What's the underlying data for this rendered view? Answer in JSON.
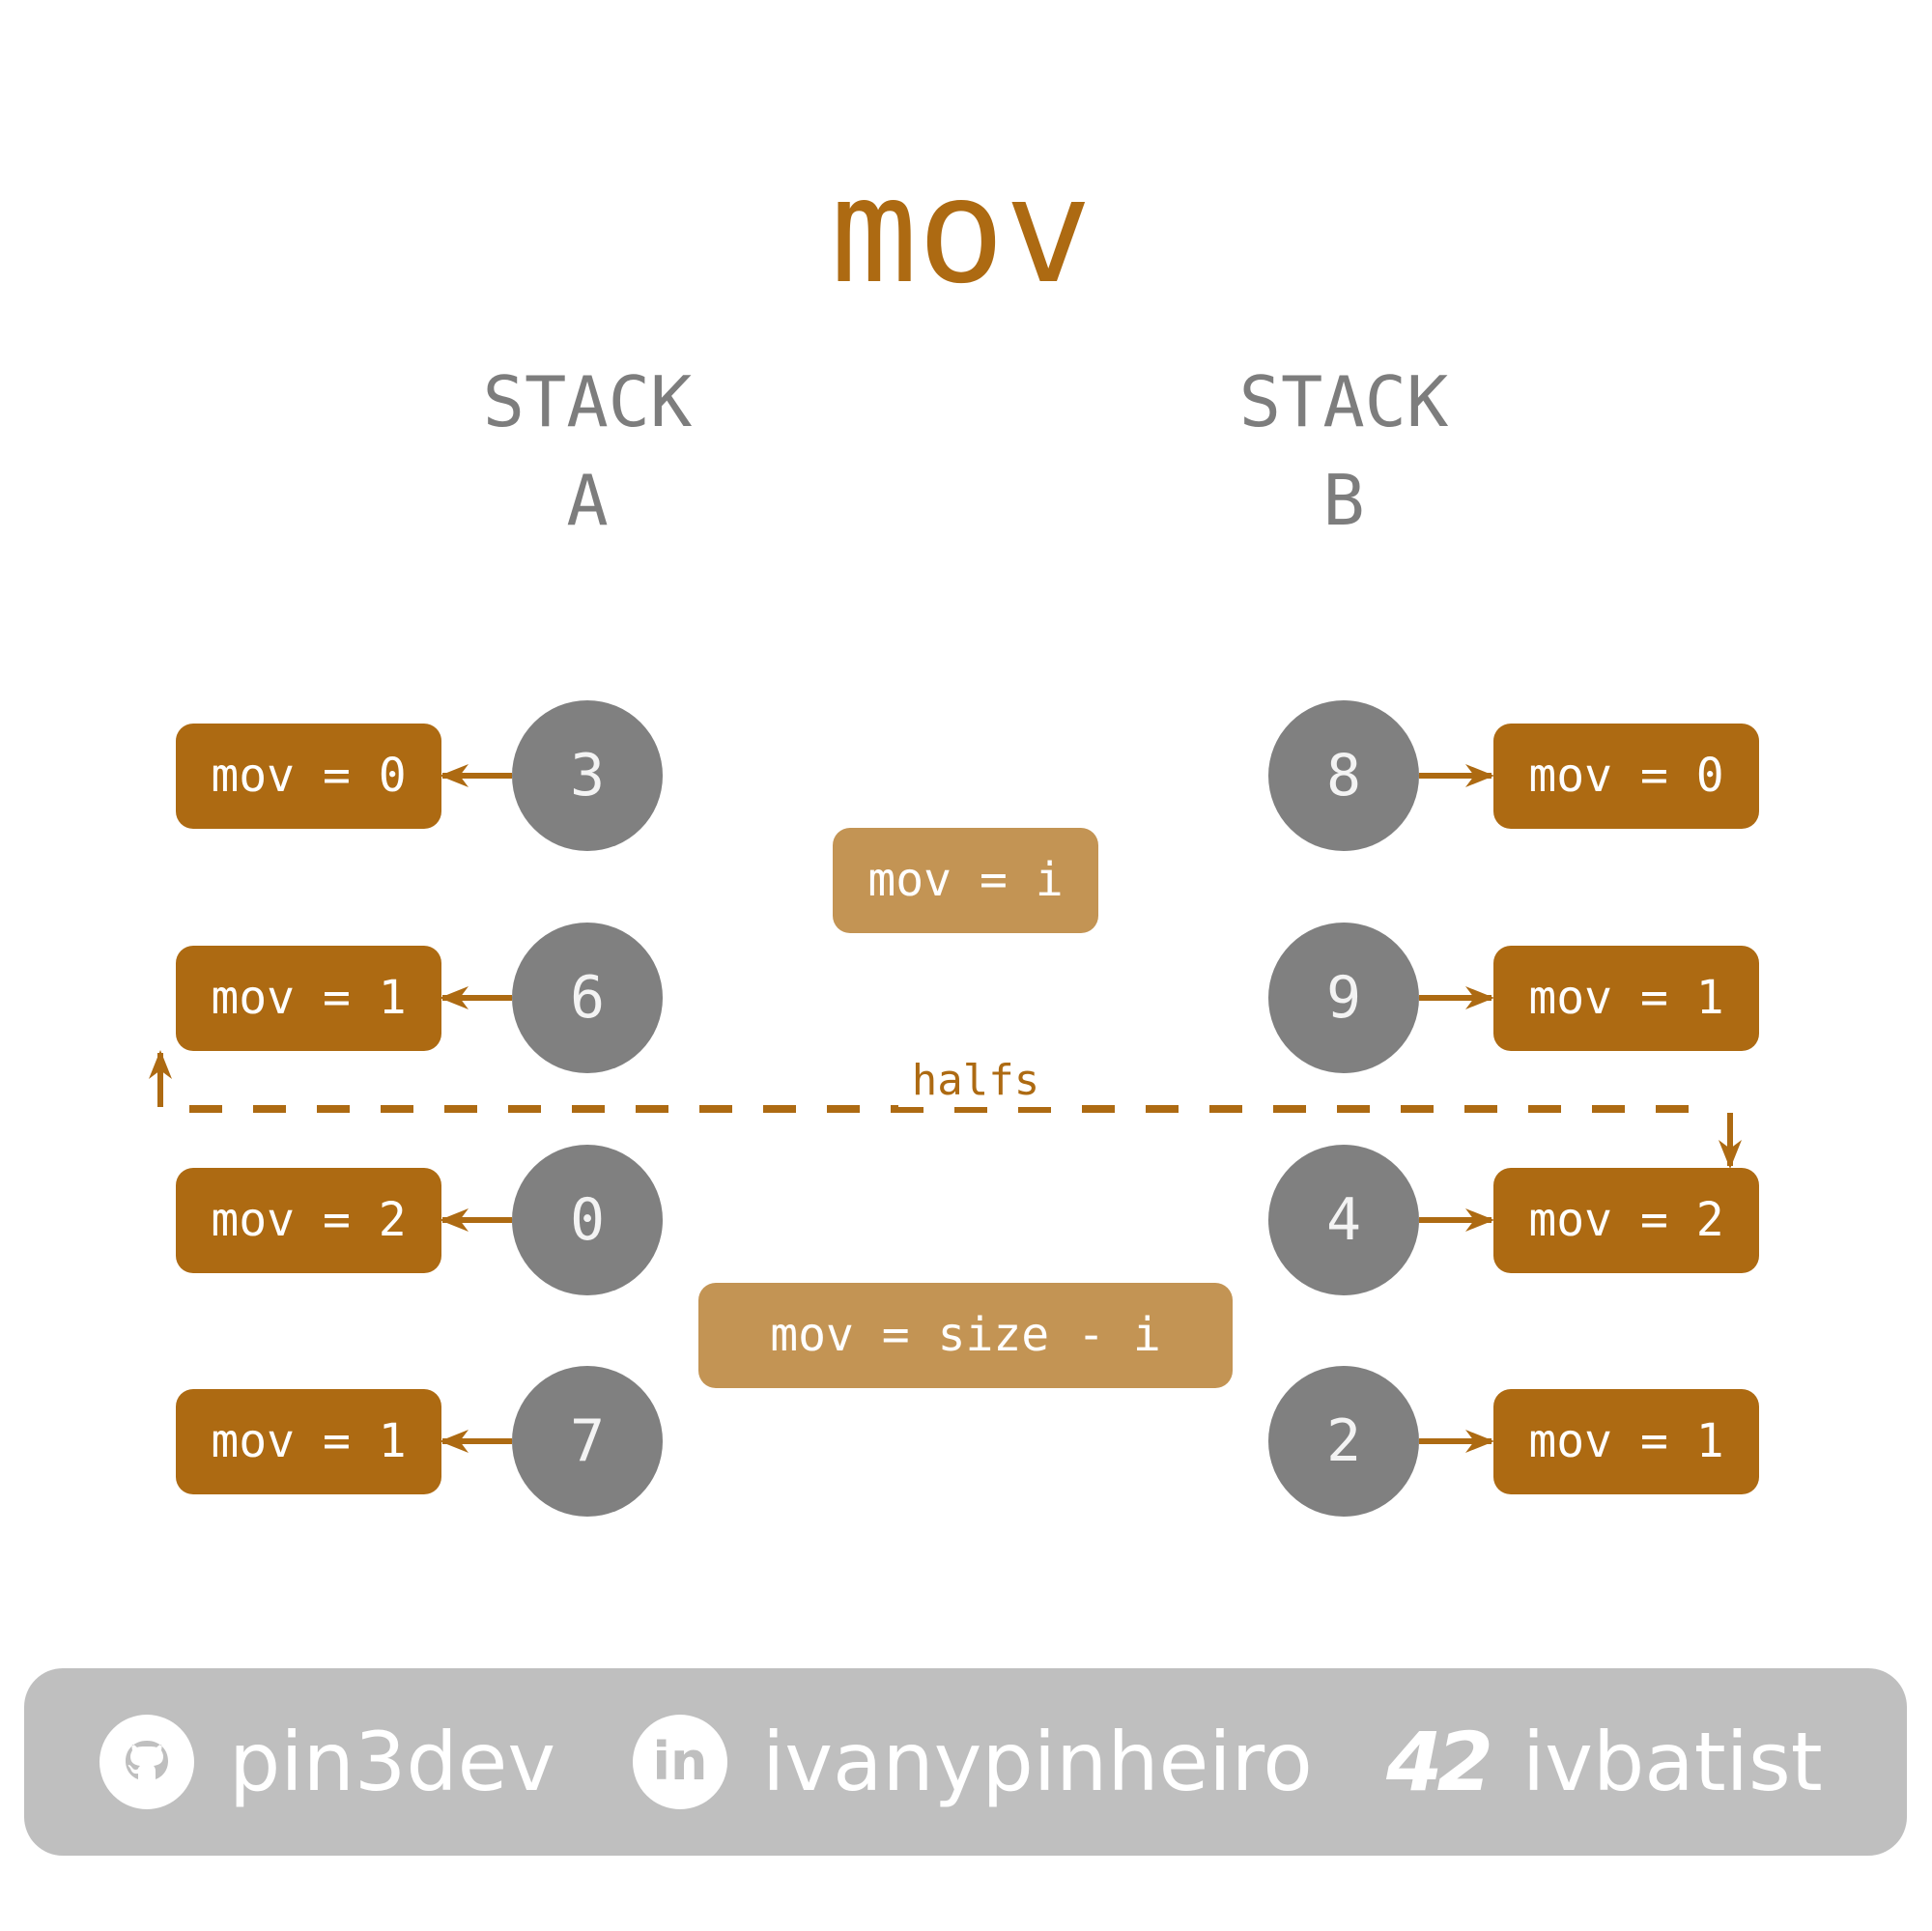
{
  "title": "mov",
  "stack_a": {
    "header": [
      "STACK",
      "A"
    ],
    "nodes": [
      {
        "value": "3",
        "label": "mov = 0"
      },
      {
        "value": "6",
        "label": "mov = 1"
      },
      {
        "value": "0",
        "label": "mov = 2"
      },
      {
        "value": "7",
        "label": "mov = 1"
      }
    ]
  },
  "stack_b": {
    "header": [
      "STACK",
      "B"
    ],
    "nodes": [
      {
        "value": "8",
        "label": "mov = 0"
      },
      {
        "value": "9",
        "label": "mov = 1"
      },
      {
        "value": "4",
        "label": "mov = 2"
      },
      {
        "value": "2",
        "label": "mov = 1"
      }
    ]
  },
  "formulas": {
    "top_half": "mov = i",
    "bottom_half": "mov = size - i"
  },
  "divider_label": "halfs",
  "colors": {
    "accent": "#ad6a12",
    "accent_light": "#c39454",
    "node": "#808080",
    "footer": "#bfbfbf"
  },
  "footer": {
    "github": {
      "icon": "github-icon",
      "handle": "pin3dev"
    },
    "linkedin": {
      "icon": "linkedin-icon",
      "glyph": "in",
      "handle": "ivanypinheiro"
    },
    "school": {
      "icon": "42-logo-icon",
      "glyph": "42",
      "handle": "ivbatist"
    }
  }
}
